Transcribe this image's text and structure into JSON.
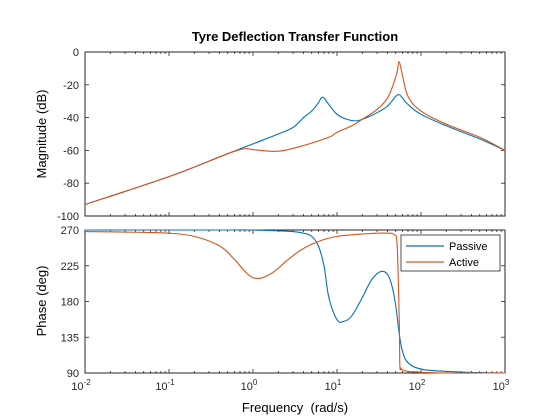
{
  "chart_data": [
    {
      "type": "line",
      "title": "Tyre Deflection Transfer Function",
      "xlabel": "",
      "ylabel": "Magnitude (dB)",
      "xscale": "log",
      "xlim": [
        0.01,
        1000
      ],
      "ylim": [
        -100,
        0
      ],
      "yticks": [
        0,
        -20,
        -40,
        -60,
        -80,
        -100
      ],
      "grid": false,
      "series": [
        {
          "name": "Passive",
          "color": "#0072BD",
          "x": [
            0.01,
            0.1,
            0.5,
            1,
            2,
            3,
            4,
            5,
            6,
            6.5,
            7,
            8,
            10,
            13,
            17,
            20,
            25,
            30,
            35,
            40,
            45,
            50,
            55,
            60,
            70,
            100,
            200,
            500,
            1000
          ],
          "y": [
            -93,
            -76,
            -62,
            -56,
            -50,
            -46,
            -40,
            -36,
            -31,
            -28,
            -28,
            -32,
            -38,
            -41,
            -42,
            -41,
            -39,
            -37,
            -35,
            -33,
            -30,
            -27,
            -26,
            -28,
            -32,
            -38,
            -45,
            -53,
            -60
          ]
        },
        {
          "name": "Active",
          "color": "#D95319",
          "x": [
            0.01,
            0.1,
            0.5,
            0.8,
            1,
            2,
            4,
            8,
            10,
            15,
            20,
            30,
            40,
            48,
            52,
            55,
            60,
            70,
            100,
            200,
            500,
            1000
          ],
          "y": [
            -93,
            -76,
            -62,
            -59,
            -59.5,
            -60.5,
            -57,
            -52,
            -49,
            -45,
            -41,
            -35,
            -28,
            -18,
            -12,
            -6,
            -14,
            -27,
            -36,
            -44,
            -52,
            -60
          ]
        }
      ]
    },
    {
      "type": "line",
      "title": "",
      "xlabel": "Frequency  (rad/s)",
      "ylabel": "Phase (deg)",
      "xscale": "log",
      "xlim": [
        0.01,
        1000
      ],
      "ylim": [
        90,
        270
      ],
      "yticks": [
        270,
        225,
        180,
        135,
        90
      ],
      "xtick_labels": [
        "10",
        "10",
        "10",
        "10",
        "10",
        "10"
      ],
      "xtick_exponents": [
        "-2",
        "-1",
        "0",
        "1",
        "2",
        "3"
      ],
      "legend": [
        "Passive",
        "Active"
      ],
      "legend_position": "top-right",
      "grid": false,
      "series": [
        {
          "name": "Passive",
          "color": "#0072BD",
          "x": [
            0.01,
            0.1,
            0.5,
            1,
            2,
            3,
            4,
            5,
            6,
            7,
            8,
            10,
            12,
            15,
            20,
            25,
            30,
            35,
            40,
            45,
            50,
            55,
            60,
            70,
            100,
            200,
            500,
            1000
          ],
          "y": [
            270,
            270,
            270,
            270,
            269,
            268,
            266,
            262,
            250,
            225,
            185,
            157,
            155,
            162,
            185,
            205,
            215,
            218,
            214,
            200,
            175,
            140,
            118,
            103,
            95,
            92,
            90.5,
            90
          ]
        },
        {
          "name": "Active",
          "color": "#D95319",
          "x": [
            0.01,
            0.05,
            0.1,
            0.2,
            0.4,
            0.6,
            0.8,
            1,
            1.3,
            1.8,
            2.5,
            3.5,
            5,
            7,
            10,
            15,
            20,
            30,
            40,
            48,
            52,
            55,
            56,
            58,
            60,
            70,
            100,
            200,
            500,
            1000
          ],
          "y": [
            268,
            267,
            266,
            262,
            250,
            233,
            218,
            210,
            210,
            218,
            231,
            243,
            252,
            258,
            262,
            264,
            265,
            266,
            266,
            264,
            250,
            160,
            100,
            96,
            94,
            92,
            91,
            90,
            90,
            90
          ]
        }
      ]
    }
  ]
}
